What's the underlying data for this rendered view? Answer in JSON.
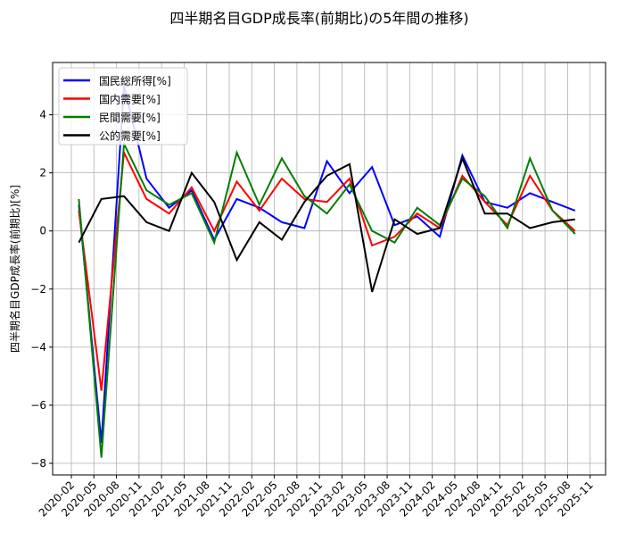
{
  "chart_data": {
    "type": "line",
    "title": "四半期名目GDP成長率(前期比)の5年間の推移)",
    "xlabel": "",
    "ylabel": "四半期名目GDP成長率(前期比)[%]",
    "x": [
      "2020-03",
      "2020-06",
      "2020-09",
      "2020-12",
      "2021-03",
      "2021-06",
      "2021-09",
      "2021-12",
      "2022-03",
      "2022-06",
      "2022-09",
      "2022-12",
      "2023-03",
      "2023-06",
      "2023-09",
      "2023-12",
      "2024-03",
      "2024-06",
      "2024-09",
      "2024-12",
      "2025-03",
      "2025-06",
      "2025-09"
    ],
    "x_ticks": [
      "2020-02",
      "2020-05",
      "2020-08",
      "2020-11",
      "2021-02",
      "2021-05",
      "2021-08",
      "2021-11",
      "2022-02",
      "2022-05",
      "2022-08",
      "2022-11",
      "2023-02",
      "2023-05",
      "2023-08",
      "2023-11",
      "2024-02",
      "2024-05",
      "2024-08",
      "2024-11",
      "2025-02",
      "2025-05",
      "2025-08",
      "2025-11"
    ],
    "y_ticks": [
      -8,
      -6,
      -4,
      -2,
      0,
      2,
      4
    ],
    "ylim": [
      -8.4,
      5.8
    ],
    "grid": true,
    "legend_position": "top-left",
    "series": [
      {
        "name": "国民総所得[%]",
        "color": "#0000ff",
        "values": [
          0.9,
          -7.3,
          5.0,
          1.8,
          0.8,
          1.4,
          -0.3,
          1.1,
          0.8,
          0.3,
          0.1,
          2.4,
          1.3,
          2.2,
          0.2,
          0.5,
          -0.2,
          2.6,
          1.0,
          0.8,
          1.3,
          1.0,
          0.7
        ]
      },
      {
        "name": "国内需要[%]",
        "color": "#ff0000",
        "values": [
          0.7,
          -5.5,
          2.7,
          1.1,
          0.6,
          1.5,
          0.0,
          1.7,
          0.7,
          1.8,
          1.1,
          1.0,
          1.8,
          -0.5,
          -0.2,
          0.6,
          0.1,
          1.9,
          1.0,
          0.2,
          1.9,
          0.7,
          0.0
        ]
      },
      {
        "name": "民間需要[%]",
        "color": "#008000",
        "values": [
          1.1,
          -7.8,
          3.0,
          1.4,
          0.9,
          1.3,
          -0.4,
          2.7,
          0.9,
          2.5,
          1.2,
          0.6,
          1.6,
          0.0,
          -0.4,
          0.8,
          0.2,
          1.8,
          1.2,
          0.1,
          2.5,
          0.7,
          -0.1
        ]
      },
      {
        "name": "公的需要[%]",
        "color": "#000000",
        "values": [
          -0.4,
          1.1,
          1.2,
          0.3,
          0.0,
          2.0,
          1.0,
          -1.0,
          0.3,
          -0.3,
          1.0,
          1.9,
          2.3,
          -2.1,
          0.4,
          -0.1,
          0.1,
          2.5,
          0.6,
          0.6,
          0.1,
          0.3,
          0.4
        ]
      }
    ]
  }
}
